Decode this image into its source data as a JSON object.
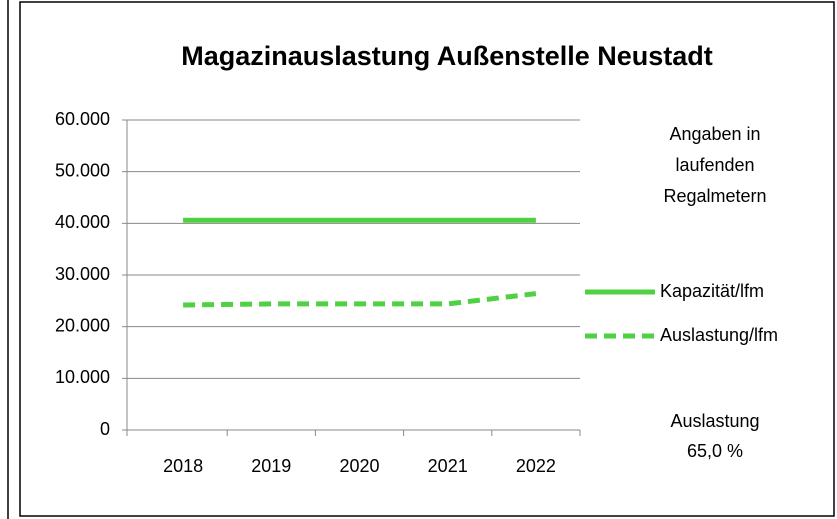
{
  "chart_data": {
    "type": "line",
    "title": "Magazinauslastung Außenstelle Neustadt",
    "categories": [
      "2018",
      "2019",
      "2020",
      "2021",
      "2022"
    ],
    "series": [
      {
        "name": "Kapazität/lfm",
        "color": "#4fd143",
        "dash": false,
        "values": [
          40600,
          40600,
          40600,
          40600,
          40600
        ]
      },
      {
        "name": "Auslastung/lfm",
        "color": "#4fd143",
        "dash": true,
        "values": [
          24200,
          24400,
          24400,
          24400,
          26400
        ]
      }
    ],
    "ylim": [
      0,
      60000
    ],
    "yticks": [
      0,
      {
        "value": 10000,
        "label": "10.000"
      },
      {
        "value": 20000,
        "label": "20.000"
      },
      {
        "value": 30000,
        "label": "30.000"
      },
      {
        "value": 40000,
        "label": "40.000"
      },
      {
        "value": 50000,
        "label": "50.000"
      },
      {
        "value": 60000,
        "label": "60.000"
      }
    ],
    "grid": true,
    "legend": "right",
    "annotations": [
      [
        "Angaben in",
        "laufenden",
        "Regalmetern"
      ],
      [
        "Auslastung",
        "65,0 %"
      ]
    ]
  }
}
